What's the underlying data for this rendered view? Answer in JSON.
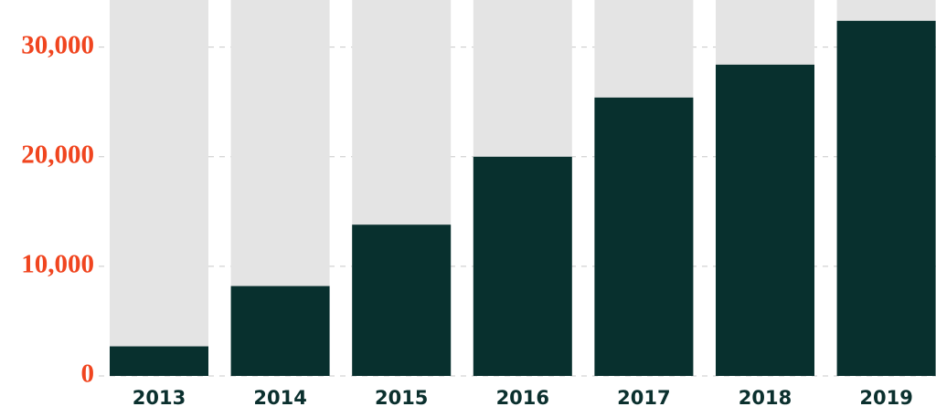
{
  "chart_data": {
    "type": "bar",
    "categories": [
      "2013",
      "2014",
      "2015",
      "2016",
      "2017",
      "2018",
      "2019"
    ],
    "values": [
      2700,
      8200,
      13800,
      20000,
      25400,
      28400,
      32400
    ],
    "color": "#08302e",
    "background_color": "#e4e4e4",
    "ylim": [
      0,
      34300
    ],
    "yticks": [
      0,
      {
        "value": 10000,
        "label": "10,000"
      },
      {
        "value": 20000,
        "label": "20,000"
      },
      {
        "value": 30000,
        "label": "30,000"
      }
    ],
    "grid": true
  }
}
